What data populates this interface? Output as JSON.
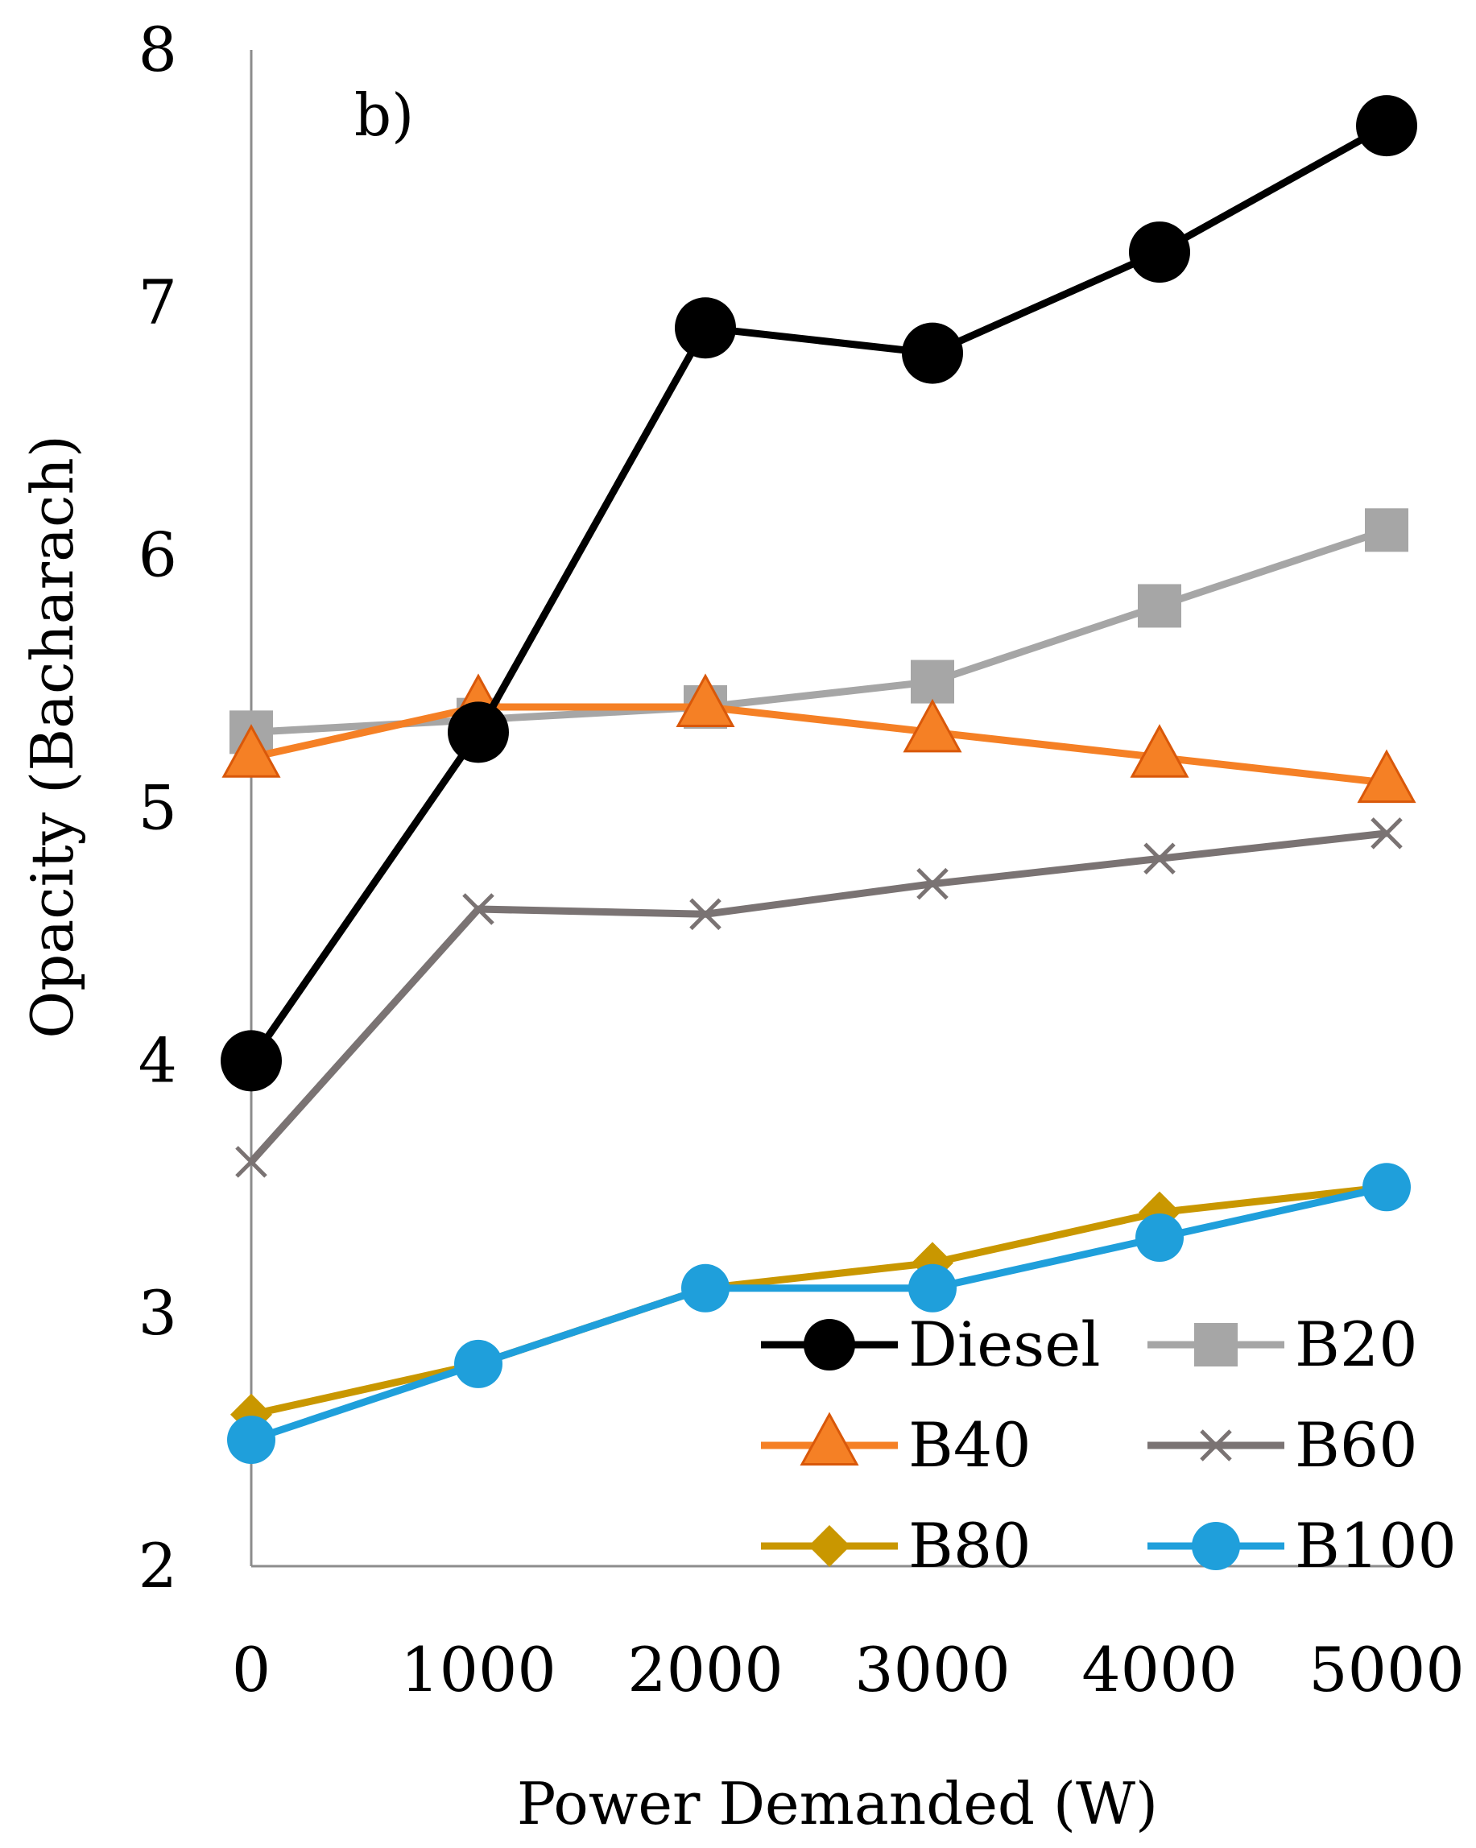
{
  "chart_data": {
    "type": "line",
    "title": "",
    "panel_label": "b)",
    "xlabel": "Power Demanded (W)",
    "ylabel": "Opacity (Bacharach)",
    "x": [
      0,
      1000,
      2000,
      3000,
      4000,
      5000
    ],
    "x_tick_labels": [
      "0",
      "1000",
      "2000",
      "3000",
      "4000",
      "5000"
    ],
    "ylim": [
      2,
      8
    ],
    "y_ticks": [
      2,
      3,
      4,
      5,
      6,
      7,
      8
    ],
    "y_tick_labels": [
      "2",
      "3",
      "4",
      "5",
      "6",
      "7",
      "8"
    ],
    "grid": false,
    "legend_position": "bottom-right",
    "series": [
      {
        "name": "Diesel",
        "marker": "circle-large",
        "color": "#000000",
        "values": [
          4.0,
          5.3,
          6.9,
          6.8,
          7.2,
          7.7
        ]
      },
      {
        "name": "B20",
        "marker": "square",
        "color": "#a6a6a6",
        "values": [
          5.3,
          5.35,
          5.4,
          5.5,
          5.8,
          6.1
        ]
      },
      {
        "name": "B40",
        "marker": "triangle",
        "color": "#f58025",
        "values": [
          5.2,
          5.4,
          5.4,
          5.3,
          5.2,
          5.1
        ]
      },
      {
        "name": "B60",
        "marker": "x",
        "color": "#7a7373",
        "values": [
          3.6,
          4.6,
          4.58,
          4.7,
          4.8,
          4.9
        ]
      },
      {
        "name": "B80",
        "marker": "diamond",
        "color": "#c99700",
        "values": [
          2.6,
          2.8,
          3.1,
          3.2,
          3.4,
          3.5
        ]
      },
      {
        "name": "B100",
        "marker": "circle",
        "color": "#1f9fdb",
        "values": [
          2.5,
          2.8,
          3.1,
          3.1,
          3.3,
          3.5
        ]
      }
    ]
  }
}
